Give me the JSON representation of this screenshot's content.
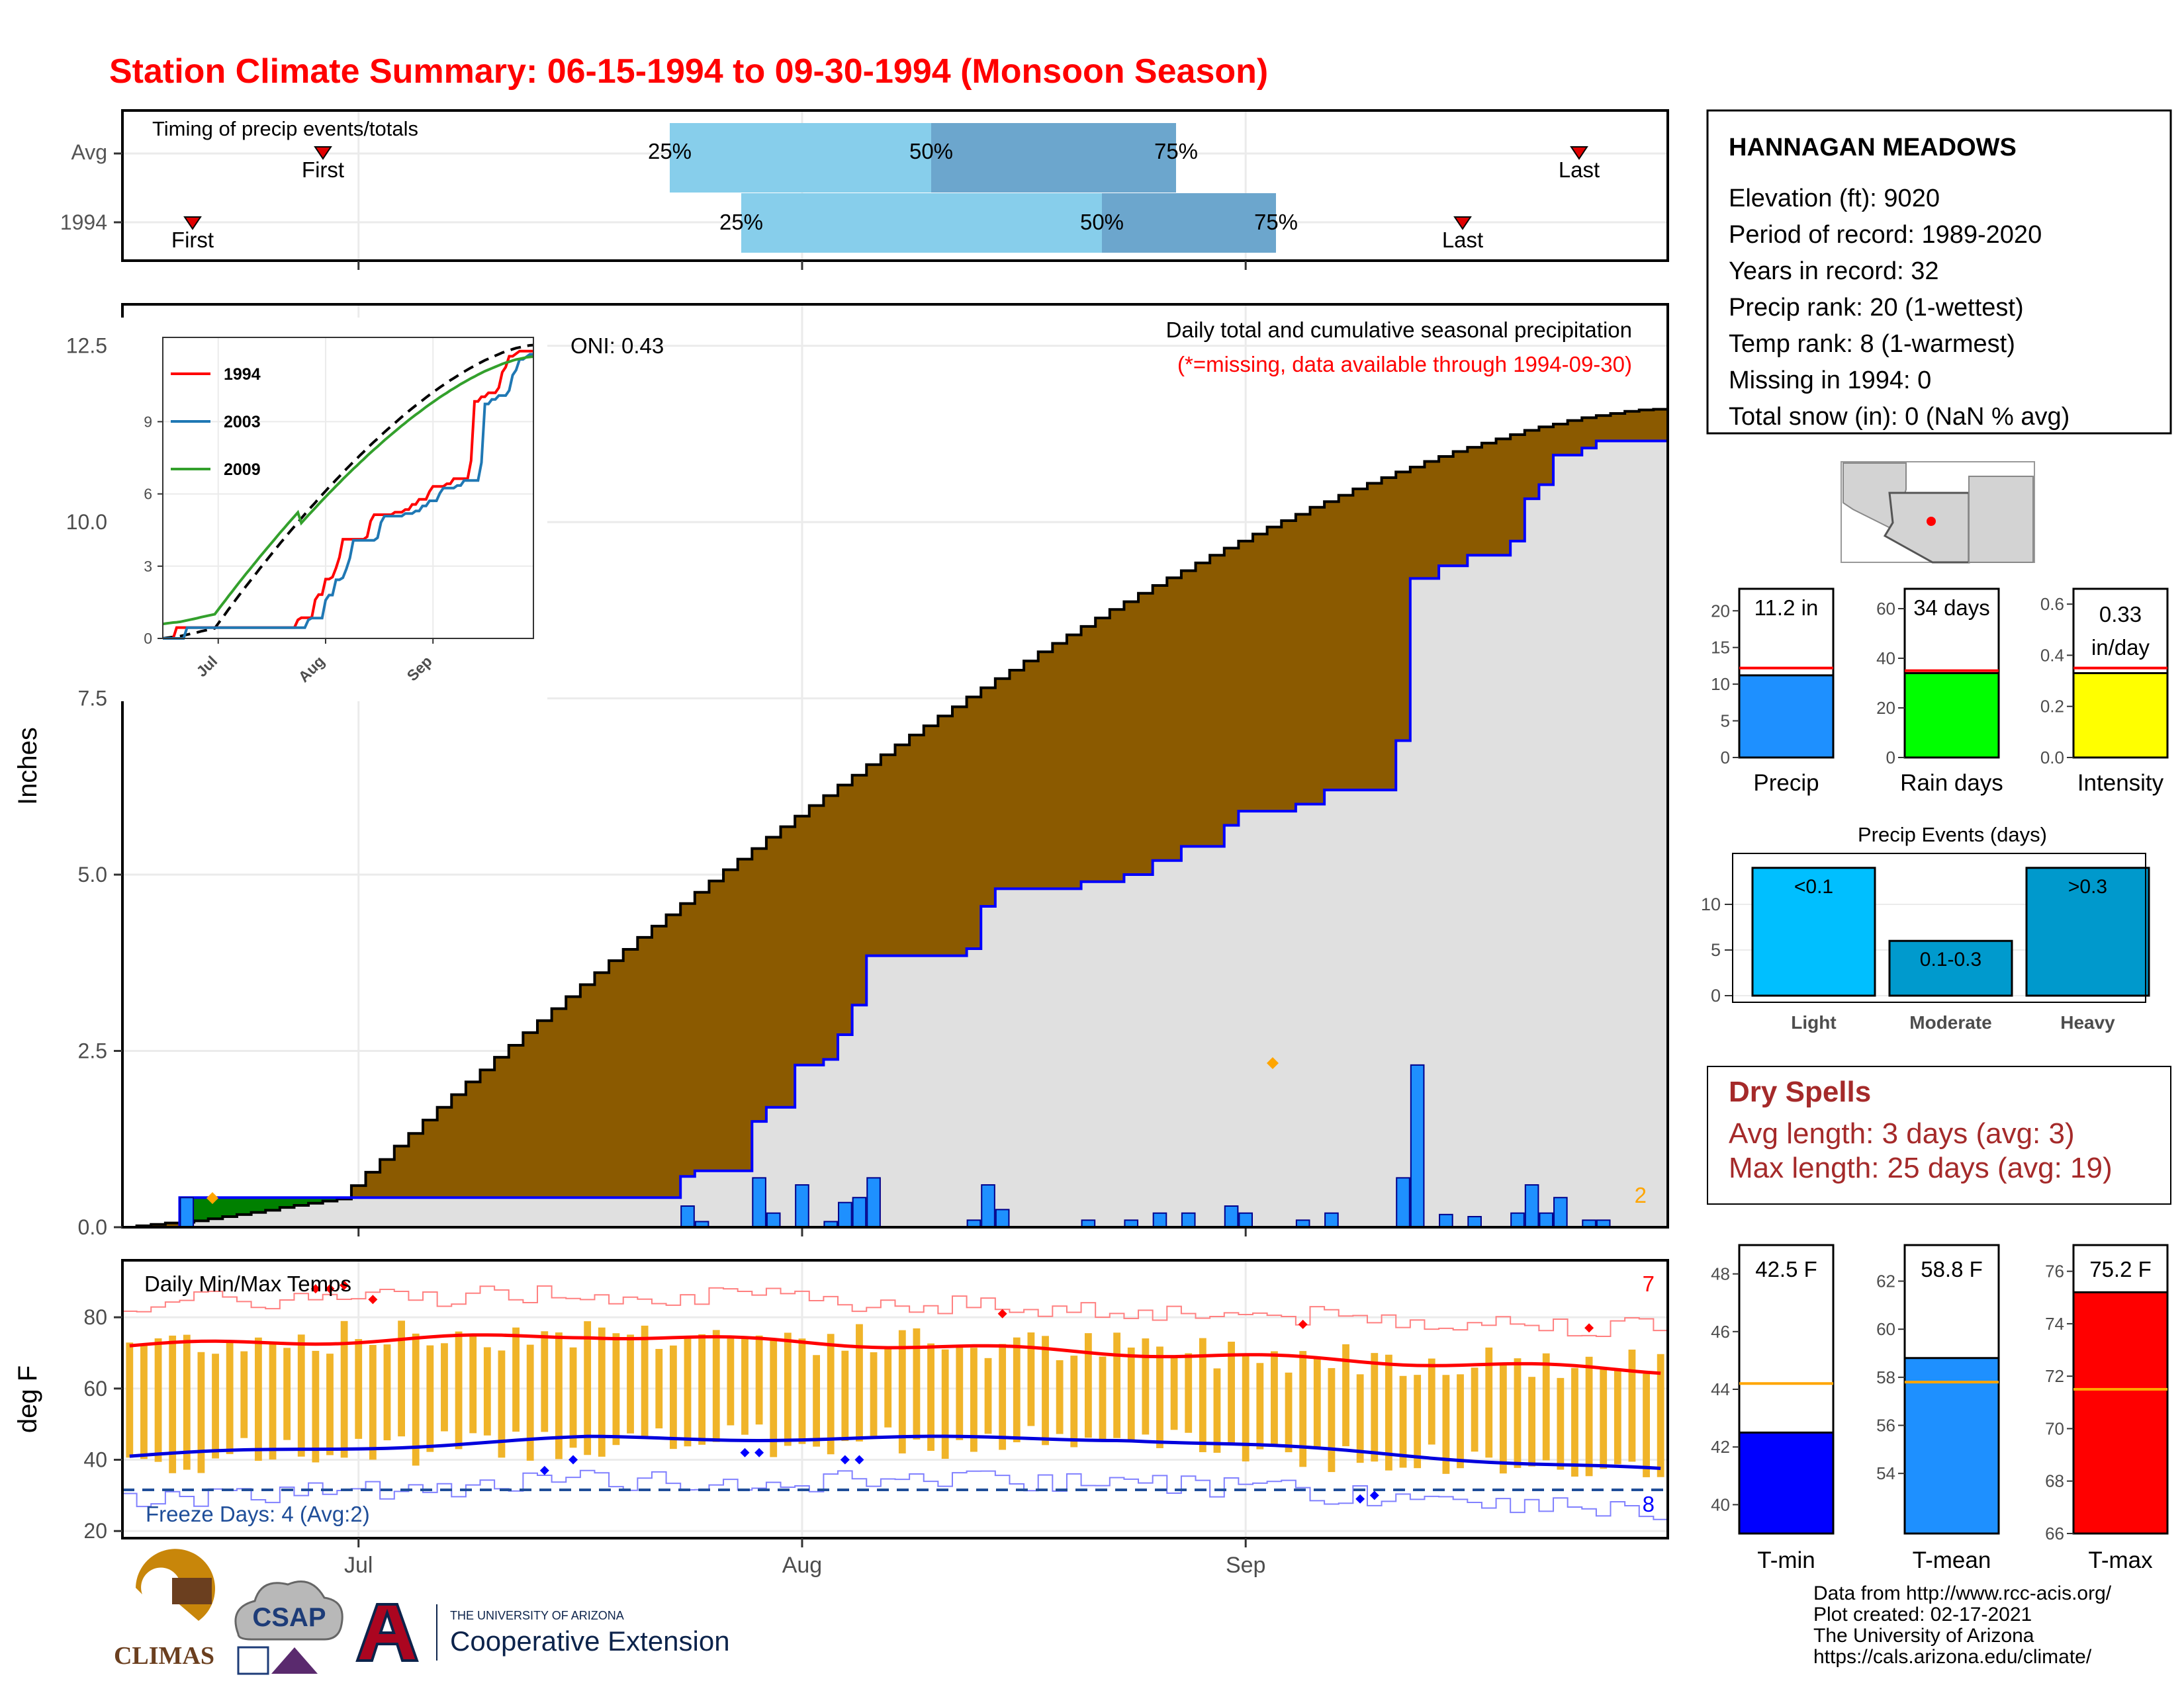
{
  "title": "Station Climate Summary: 06-15-1994 to 09-30-1994 (Monsoon Season)",
  "timing": {
    "label": "Timing of precip events/totals",
    "rows": [
      "Avg",
      "1994"
    ],
    "first_label": "First",
    "last_label": "Last",
    "avg": {
      "first": "Jun 28",
      "q25": "Jul 25",
      "q50": "Aug 2",
      "q75": "Aug 10",
      "last": "Sep 26"
    },
    "yr": {
      "first": "Jun 19",
      "q25": "Jul 27",
      "q50": "Aug 8",
      "q75": "Aug 13",
      "last": "Sep 22"
    },
    "q_labels": [
      "25%",
      "50%",
      "75%"
    ]
  },
  "station": {
    "name": "HANNAGAN MEADOWS",
    "lines": [
      "Elevation (ft): 9020",
      "Period of record: 1989-2020",
      "Years in record: 32",
      "Precip rank: 20 (1-wettest)",
      "Temp rank: 8 (1-warmest)",
      "Missing in 1994: 0",
      "Total snow (in): 0 (NaN % avg)"
    ]
  },
  "precip_panel": {
    "ylabel": "Inches",
    "yticks": [
      "0.0",
      "2.5",
      "5.0",
      "7.5",
      "10.0",
      "12.5"
    ],
    "ylim": [
      0,
      12.9
    ],
    "xticks": [
      "Jul",
      "Aug",
      "Sep"
    ],
    "oni": "ONI: 0.43",
    "subtitle": "Daily total and cumulative seasonal precipitation",
    "missing_note": "(*=missing, data available through 1994-09-30)",
    "corner_count": "2",
    "inset": {
      "series": [
        "1994",
        "2003",
        "2009"
      ],
      "colors": [
        "#ff0000",
        "#1f78b4",
        "#33a02c"
      ],
      "yticks": [
        "0",
        "3",
        "6",
        "9"
      ],
      "xticks": [
        "Jul",
        "Aug",
        "Sep"
      ]
    }
  },
  "temp_panel": {
    "label": "Daily Min/Max Temps",
    "ylabel": "deg F",
    "yticks": [
      "20",
      "40",
      "60",
      "80"
    ],
    "xticks": [
      "Jul",
      "Aug",
      "Sep"
    ],
    "freeze_days": "Freeze Days: 4 (Avg:2)",
    "count_hot": "7",
    "count_cold": "8"
  },
  "summary_bars": [
    {
      "label": "Precip",
      "value_text": "11.2 in",
      "value": 11.2,
      "avg": 12.2,
      "ymax": 23,
      "yticks": [
        "0",
        "5",
        "10",
        "15",
        "20"
      ],
      "color": "#1e90ff"
    },
    {
      "label": "Rain days",
      "value_text": "34 days",
      "value": 34,
      "avg": 35,
      "ymax": 68,
      "yticks": [
        "0",
        "20",
        "40",
        "60"
      ],
      "color": "#00ff00"
    },
    {
      "label": "Intensity",
      "value_text": "0.33",
      "value_text2": "in/day",
      "value": 0.33,
      "avg": 0.35,
      "ymax": 0.66,
      "yticks": [
        "0.0",
        "0.2",
        "0.4",
        "0.6"
      ],
      "color": "#ffff00"
    }
  ],
  "precip_events": {
    "title": "Precip Events (days)",
    "categories": [
      "Light",
      "Moderate",
      "Heavy"
    ],
    "bar_labels": [
      "<0.1",
      "0.1-0.3",
      ">0.3"
    ],
    "values": [
      14,
      6,
      14
    ],
    "colors": [
      "#00bfff",
      "#009acd",
      "#0099cc"
    ],
    "yticks": [
      "0",
      "5",
      "10"
    ]
  },
  "dry_spells": {
    "title": "Dry Spells",
    "lines": [
      "Avg length: 3 days (avg: 3)",
      "Max length: 25 days (avg: 19)"
    ]
  },
  "temp_bars": [
    {
      "label": "T-min",
      "value_text": "42.5 F",
      "value": 42.5,
      "avg": 44.2,
      "ylim": [
        39,
        49
      ],
      "yticks": [
        "40",
        "42",
        "44",
        "46",
        "48"
      ],
      "color": "#0000ff"
    },
    {
      "label": "T-mean",
      "value_text": "58.8 F",
      "value": 58.8,
      "avg": 57.8,
      "ylim": [
        51.5,
        63.5
      ],
      "yticks": [
        "54",
        "56",
        "58",
        "60",
        "62"
      ],
      "color": "#1e90ff"
    },
    {
      "label": "T-max",
      "value_text": "75.2 F",
      "value": 75.2,
      "avg": 71.5,
      "ylim": [
        66,
        77
      ],
      "yticks": [
        "66",
        "68",
        "70",
        "72",
        "74",
        "76"
      ],
      "color": "#ff0000"
    }
  ],
  "footer": {
    "lines": [
      "Data from http://www.rcc-acis.org/",
      "Plot created: 02-17-2021",
      "The University of Arizona",
      "https://cals.arizona.edu/climate/"
    ],
    "logos": {
      "climas": "CLIMAS",
      "csap": "CSAP",
      "ua_small": "THE UNIVERSITY OF ARIZONA",
      "ua_big": "Cooperative Extension"
    }
  },
  "chart_data": [
    {
      "type": "area",
      "title": "Daily total and cumulative seasonal precipitation",
      "ylabel": "Inches",
      "ylim": [
        0,
        12.9
      ],
      "x": [
        "1994-06-15",
        "1994-09-30"
      ],
      "daily_precip": [
        {
          "date": "1994-06-19",
          "value": 0.42
        },
        {
          "date": "1994-07-24",
          "value": 0.3
        },
        {
          "date": "1994-07-25",
          "value": 0.08
        },
        {
          "date": "1994-07-29",
          "value": 0.7
        },
        {
          "date": "1994-07-30",
          "value": 0.2
        },
        {
          "date": "1994-08-01",
          "value": 0.6
        },
        {
          "date": "1994-08-03",
          "value": 0.08
        },
        {
          "date": "1994-08-04",
          "value": 0.35
        },
        {
          "date": "1994-08-05",
          "value": 0.42
        },
        {
          "date": "1994-08-06",
          "value": 0.7
        },
        {
          "date": "1994-08-13",
          "value": 0.1
        },
        {
          "date": "1994-08-14",
          "value": 0.6
        },
        {
          "date": "1994-08-15",
          "value": 0.25
        },
        {
          "date": "1994-08-21",
          "value": 0.1
        },
        {
          "date": "1994-08-24",
          "value": 0.1
        },
        {
          "date": "1994-08-26",
          "value": 0.2
        },
        {
          "date": "1994-08-28",
          "value": 0.2
        },
        {
          "date": "1994-08-31",
          "value": 0.3
        },
        {
          "date": "1994-09-01",
          "value": 0.2
        },
        {
          "date": "1994-09-05",
          "value": 0.1
        },
        {
          "date": "1994-09-07",
          "value": 0.2
        },
        {
          "date": "1994-09-12",
          "value": 0.7
        },
        {
          "date": "1994-09-13",
          "value": 2.3
        },
        {
          "date": "1994-09-15",
          "value": 0.18
        },
        {
          "date": "1994-09-17",
          "value": 0.15
        },
        {
          "date": "1994-09-20",
          "value": 0.2
        },
        {
          "date": "1994-09-21",
          "value": 0.6
        },
        {
          "date": "1994-09-22",
          "value": 0.2
        },
        {
          "date": "1994-09-23",
          "value": 0.42
        },
        {
          "date": "1994-09-25",
          "value": 0.1
        },
        {
          "date": "1994-09-26",
          "value": 0.1
        }
      ],
      "cumulative_1994_end": 11.2,
      "average_cumulative_end": 11.6
    },
    {
      "type": "line",
      "inset": true,
      "series": [
        {
          "name": "1994",
          "end": 11.2
        },
        {
          "name": "2003",
          "end": 11.8
        },
        {
          "name": "2009",
          "end": 11.7
        }
      ],
      "yticks": [
        0,
        3,
        6,
        9
      ]
    },
    {
      "type": "line",
      "title": "Daily Min/Max Temps",
      "ylabel": "deg F",
      "ylim": [
        18,
        96
      ],
      "smoothed_tmax_avg": {
        "start": 72,
        "mid": 75,
        "end": 65
      },
      "smoothed_tmin_avg": {
        "start": 41,
        "mid": 46,
        "end": 37
      },
      "freeze_line": 32
    },
    {
      "type": "bar",
      "categories": [
        "Precip",
        "Rain days",
        "Intensity"
      ],
      "values": [
        11.2,
        34,
        0.33
      ],
      "averages": [
        12.2,
        35,
        0.35
      ]
    },
    {
      "type": "bar",
      "title": "Precip Events (days)",
      "categories": [
        "Light",
        "Moderate",
        "Heavy"
      ],
      "values": [
        14,
        6,
        14
      ]
    },
    {
      "type": "bar",
      "categories": [
        "T-min",
        "T-mean",
        "T-max"
      ],
      "values": [
        42.5,
        58.8,
        75.2
      ],
      "averages": [
        44.2,
        57.8,
        71.5
      ]
    }
  ]
}
